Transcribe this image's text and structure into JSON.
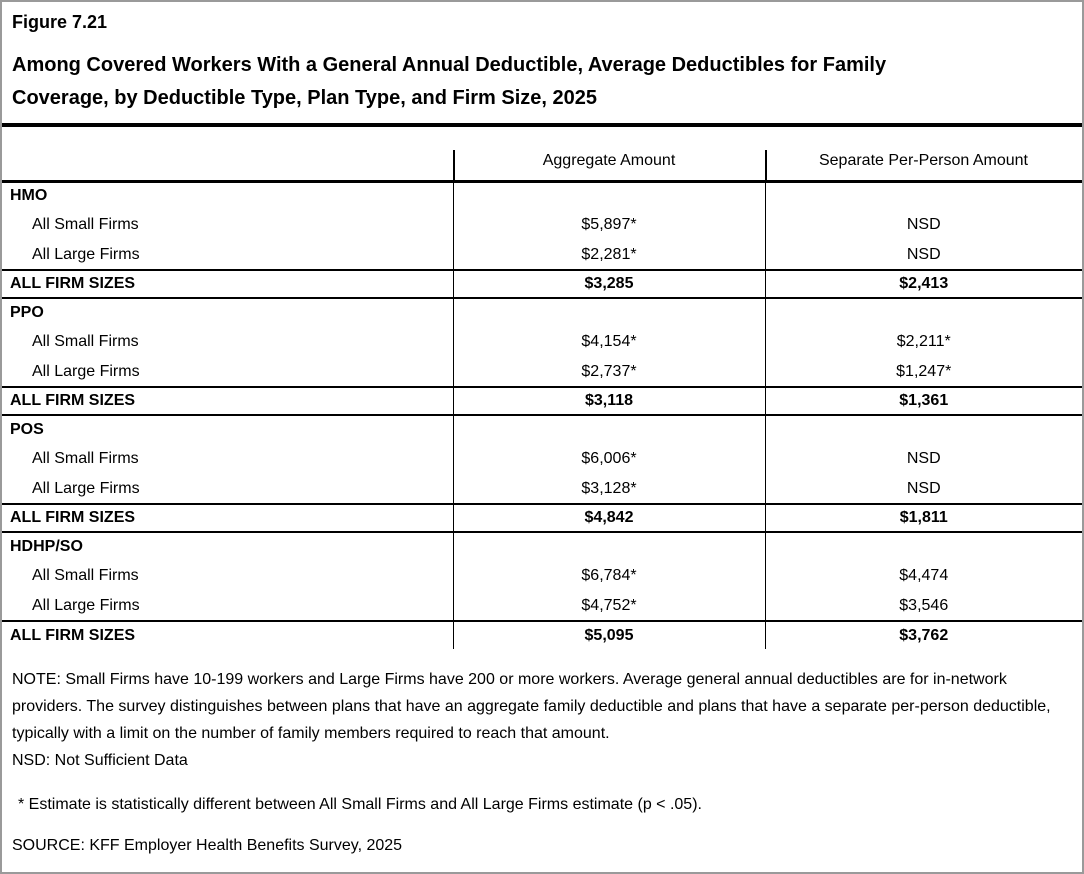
{
  "page": {
    "figure_label": "Figure 7.21",
    "title_lines": [
      "Among Covered Workers With a General Annual Deductible, Average Deductibles for Family",
      "Coverage, by Deductible Type, Plan Type, and Firm Size, 2025"
    ]
  },
  "colors": {
    "background": "#ffffff",
    "text": "#000000",
    "rules": "#000000",
    "frame": "#9a9a9a"
  },
  "table": {
    "col_headers": {
      "row_label": "",
      "aggregate": "Aggregate Amount",
      "separate": "Separate Per-Person Amount"
    },
    "sections": [
      {
        "plan_type": "HMO",
        "rows": [
          {
            "label": "All Small Firms",
            "aggregate": "$5,897*",
            "separate": "NSD"
          },
          {
            "label": "All Large Firms",
            "aggregate": "$2,281*",
            "separate": "NSD"
          }
        ],
        "total": {
          "label": "ALL FIRM SIZES",
          "aggregate": "$3,285",
          "separate": "$2,413"
        }
      },
      {
        "plan_type": "PPO",
        "rows": [
          {
            "label": "All Small Firms",
            "aggregate": "$4,154*",
            "separate": "$2,211*"
          },
          {
            "label": "All Large Firms",
            "aggregate": "$2,737*",
            "separate": "$1,247*"
          }
        ],
        "total": {
          "label": "ALL FIRM SIZES",
          "aggregate": "$3,118",
          "separate": "$1,361"
        }
      },
      {
        "plan_type": "POS",
        "rows": [
          {
            "label": "All Small Firms",
            "aggregate": "$6,006*",
            "separate": "NSD"
          },
          {
            "label": "All Large Firms",
            "aggregate": "$3,128*",
            "separate": "NSD"
          }
        ],
        "total": {
          "label": "ALL FIRM SIZES",
          "aggregate": "$4,842",
          "separate": "$1,811"
        }
      },
      {
        "plan_type": "HDHP/SO",
        "rows": [
          {
            "label": "All Small Firms",
            "aggregate": "$6,784*",
            "separate": "$4,474"
          },
          {
            "label": "All Large Firms",
            "aggregate": "$4,752*",
            "separate": "$3,546"
          }
        ],
        "total": {
          "label": "ALL FIRM SIZES",
          "aggregate": "$5,095",
          "separate": "$3,762"
        }
      }
    ]
  },
  "footnotes": {
    "note": "NOTE: Small Firms have 10-199 workers and Large Firms have 200 or more workers. Average general annual deductibles are for in-network providers. The survey distinguishes between plans that have an aggregate family deductible and plans that have a separate per-person deductible, typically with a limit on the number of family members required to reach that amount.",
    "nsd_definition": "NSD: Not Sufficient Data",
    "significance_note": "* Estimate is statistically different between All Small Firms and All Large Firms estimate (p < .05).",
    "source": "SOURCE: KFF Employer Health Benefits Survey, 2025"
  }
}
